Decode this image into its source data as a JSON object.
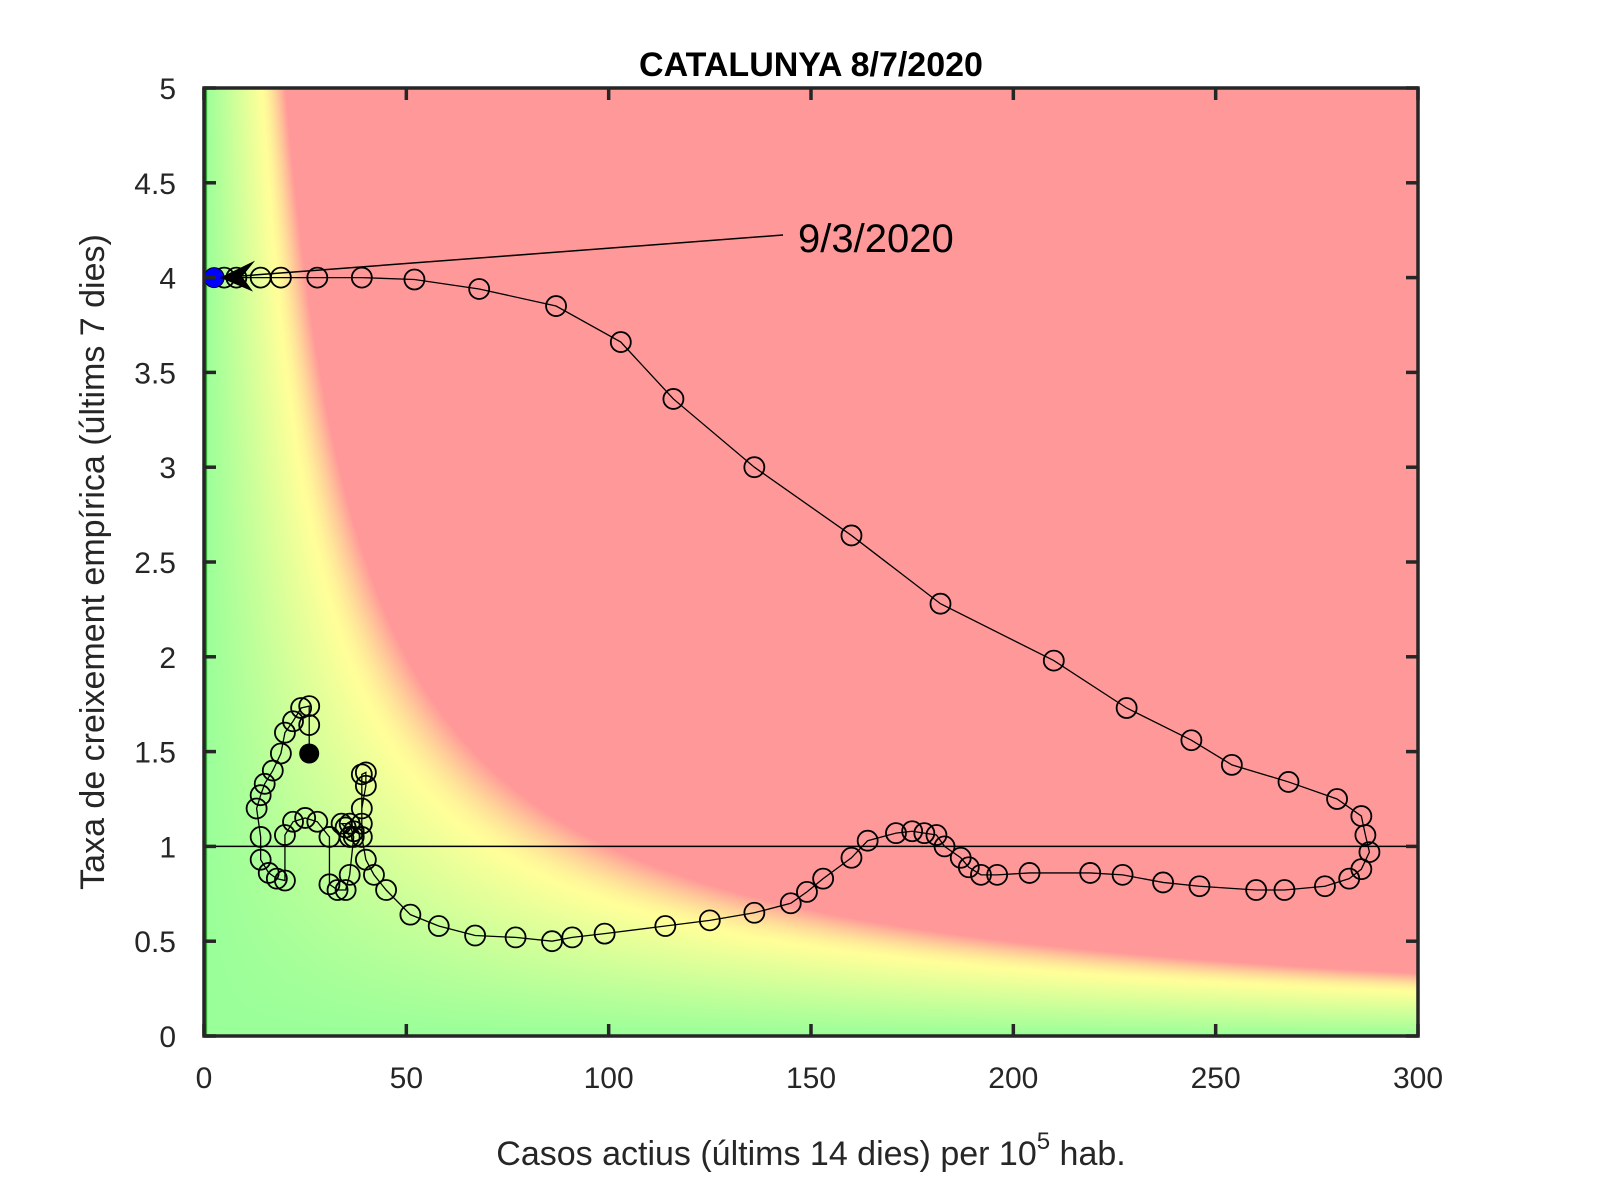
{
  "chart_data": {
    "type": "line",
    "title": "CATALUNYA 8/7/2020",
    "xlabel": "Casos actius (últims 14 dies) per 10",
    "xlabel_sup": "5",
    "xlabel_suffix": " hab.",
    "ylabel": "Taxa de creixement empírica (últims 7 dies)",
    "xlim": [
      0,
      300
    ],
    "ylim": [
      0,
      5
    ],
    "xticks": [
      "0",
      "50",
      "100",
      "150",
      "200",
      "250",
      "300"
    ],
    "yticks": [
      "0",
      "0.5",
      "1",
      "1.5",
      "2",
      "2.5",
      "3",
      "3.5",
      "4",
      "4.5",
      "5"
    ],
    "reference_line_y": 1,
    "background": {
      "green": "#99ff99",
      "yellow": "#ffff99",
      "red": "#ff9999",
      "risk_product_threshold": 100
    },
    "annotation": {
      "text": "9/3/2020",
      "target_index": 0
    },
    "start_color": "#0000ff",
    "end_color": "#000000",
    "points": [
      [
        2,
        4.0
      ],
      [
        5,
        4.0
      ],
      [
        8,
        4.0
      ],
      [
        14,
        4.0
      ],
      [
        19,
        4.0
      ],
      [
        28,
        4.0
      ],
      [
        39,
        4.0
      ],
      [
        52,
        3.99
      ],
      [
        68,
        3.94
      ],
      [
        87,
        3.85
      ],
      [
        103,
        3.66
      ],
      [
        116,
        3.36
      ],
      [
        136,
        3.0
      ],
      [
        160,
        2.64
      ],
      [
        182,
        2.28
      ],
      [
        210,
        1.98
      ],
      [
        228,
        1.73
      ],
      [
        244,
        1.56
      ],
      [
        254,
        1.43
      ],
      [
        268,
        1.34
      ],
      [
        280,
        1.25
      ],
      [
        286,
        1.16
      ],
      [
        287,
        1.06
      ],
      [
        288,
        0.97
      ],
      [
        286,
        0.88
      ],
      [
        283,
        0.83
      ],
      [
        277,
        0.79
      ],
      [
        267,
        0.77
      ],
      [
        260,
        0.77
      ],
      [
        246,
        0.79
      ],
      [
        237,
        0.81
      ],
      [
        227,
        0.85
      ],
      [
        219,
        0.86
      ],
      [
        204,
        0.86
      ],
      [
        196,
        0.85
      ],
      [
        192,
        0.85
      ],
      [
        189,
        0.89
      ],
      [
        187,
        0.94
      ],
      [
        183,
        1.0
      ],
      [
        181,
        1.06
      ],
      [
        178,
        1.07
      ],
      [
        175,
        1.08
      ],
      [
        171,
        1.07
      ],
      [
        164,
        1.03
      ],
      [
        160,
        0.94
      ],
      [
        153,
        0.83
      ],
      [
        149,
        0.76
      ],
      [
        145,
        0.7
      ],
      [
        136,
        0.65
      ],
      [
        125,
        0.61
      ],
      [
        114,
        0.58
      ],
      [
        99,
        0.54
      ],
      [
        91,
        0.52
      ],
      [
        86,
        0.5
      ],
      [
        77,
        0.52
      ],
      [
        67,
        0.53
      ],
      [
        58,
        0.58
      ],
      [
        51,
        0.64
      ],
      [
        45,
        0.77
      ],
      [
        42,
        0.85
      ],
      [
        40,
        0.93
      ],
      [
        39,
        1.05
      ],
      [
        39,
        1.2
      ],
      [
        40,
        1.32
      ],
      [
        40,
        1.39
      ],
      [
        39,
        1.38
      ],
      [
        39,
        1.12
      ],
      [
        37,
        1.08
      ],
      [
        36,
        1.05
      ],
      [
        35,
        1.1
      ],
      [
        34,
        1.12
      ],
      [
        36,
        1.12
      ],
      [
        37,
        1.05
      ],
      [
        36,
        0.85
      ],
      [
        35,
        0.77
      ],
      [
        33,
        0.77
      ],
      [
        31,
        0.8
      ],
      [
        31,
        1.05
      ],
      [
        28,
        1.13
      ],
      [
        25,
        1.15
      ],
      [
        22,
        1.13
      ],
      [
        20,
        1.06
      ],
      [
        20,
        0.82
      ],
      [
        18,
        0.83
      ],
      [
        16,
        0.86
      ],
      [
        14,
        0.93
      ],
      [
        14,
        1.05
      ],
      [
        13,
        1.2
      ],
      [
        14,
        1.27
      ],
      [
        15,
        1.33
      ],
      [
        17,
        1.4
      ],
      [
        19,
        1.49
      ],
      [
        20,
        1.6
      ],
      [
        22,
        1.66
      ],
      [
        24,
        1.73
      ],
      [
        26,
        1.74
      ],
      [
        26,
        1.64
      ],
      [
        26,
        1.49
      ]
    ]
  }
}
